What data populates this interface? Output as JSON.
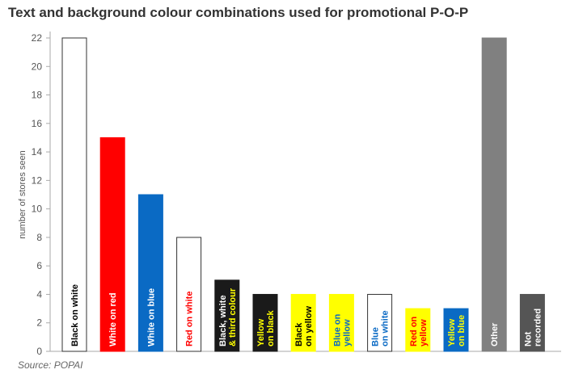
{
  "chart_data": {
    "type": "bar",
    "title": "Text and background colour combinations used for promotional P-O-P",
    "ylabel": "number of stores seen",
    "xlabel": "",
    "ylim": [
      0,
      22
    ],
    "yticks": [
      0,
      2,
      4,
      6,
      8,
      10,
      12,
      14,
      16,
      18,
      20,
      22
    ],
    "grid": false,
    "source": "Source: POPAI",
    "categories": [
      "Black on white",
      "White on red",
      "White on blue",
      "Red on white",
      "Black, white\n& third colour",
      "Yellow\non black",
      "Black\non yellow",
      "Blue on\nyellow",
      "Blue\non white",
      "Red on\nyellow",
      "Yellow\non blue",
      "Other",
      "Not\nrecorded"
    ],
    "values": [
      22,
      15,
      11,
      8,
      5,
      4,
      4,
      4,
      4,
      3,
      3,
      22,
      4
    ],
    "bar_colors": [
      "#ffffff",
      "#ff0000",
      "#0a6ac4",
      "#ffffff",
      "#1a1a1a",
      "#1a1a1a",
      "#ffff00",
      "#ffff00",
      "#ffffff",
      "#ffff00",
      "#0a6ac4",
      "#808080",
      "#555555"
    ],
    "label_colors": [
      [
        "#000000"
      ],
      [
        "#ffffff"
      ],
      [
        "#ffffff"
      ],
      [
        "#ff0000"
      ],
      [
        "#ffffff",
        "#ffff00"
      ],
      [
        "#ffff00"
      ],
      [
        "#000000"
      ],
      [
        "#0a6ac4"
      ],
      [
        "#0a6ac4"
      ],
      [
        "#ff0000"
      ],
      [
        "#ffff00"
      ],
      [
        "#ffffff"
      ],
      [
        "#ffffff"
      ]
    ]
  }
}
